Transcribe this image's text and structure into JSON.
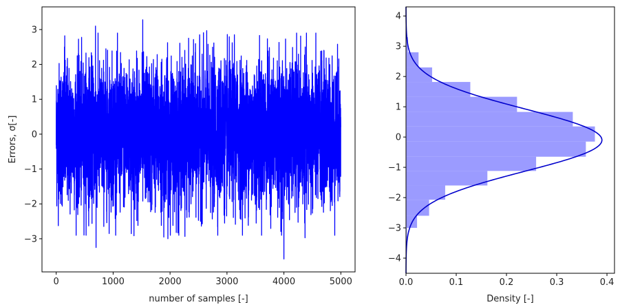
{
  "chart_data": [
    {
      "type": "line",
      "xlabel": "number of samples [-]",
      "ylabel": "Errors, σ[-]",
      "xlim": [
        -250,
        5250
      ],
      "ylim": [
        -3.95,
        3.65
      ],
      "xticks": [
        0,
        1000,
        2000,
        3000,
        4000,
        5000
      ],
      "yticks": [
        -3,
        -2,
        -1,
        0,
        1,
        2,
        3
      ],
      "xtick_labels": [
        "0",
        "1000",
        "2000",
        "3000",
        "4000",
        "5000"
      ],
      "ytick_labels": [
        "−3",
        "−2",
        "−1",
        "0",
        "1",
        "2",
        "3"
      ],
      "series": [
        {
          "color": "#0000ff",
          "n_samples": 5000,
          "mean": 0,
          "std": 1,
          "spikes": [
            [
              1520,
              3.28
            ],
            [
              690,
              3.1
            ],
            [
              4000,
              -3.58
            ],
            [
              700,
              -3.25
            ],
            [
              1890,
              -2.95
            ],
            [
              3130,
              2.85
            ],
            [
              2520,
              2.85
            ],
            [
              150,
              2.82
            ]
          ]
        }
      ],
      "grid": false,
      "legend": false
    },
    {
      "type": "histogram",
      "orientation": "horizontal",
      "xlabel": "Density [-]",
      "ylabel": "",
      "xlim": [
        0,
        0.415
      ],
      "ylim": [
        -4.5,
        4.3
      ],
      "xticks": [
        0,
        0.1,
        0.2,
        0.3,
        0.4
      ],
      "yticks": [
        -4,
        -3,
        -2,
        -1,
        0,
        1,
        2,
        3,
        4
      ],
      "xtick_labels": [
        "0.0",
        "0.1",
        "0.2",
        "0.3",
        "0.4"
      ],
      "ytick_labels": [
        "−4",
        "−3",
        "−2",
        "−1",
        "0",
        "1",
        "2",
        "3",
        "4"
      ],
      "bins": [
        {
          "y0": -3.58,
          "y1": -3.0,
          "density": 0.002
        },
        {
          "y0": -3.0,
          "y1": -2.6,
          "density": 0.022
        },
        {
          "y0": -2.6,
          "y1": -2.07,
          "density": 0.046
        },
        {
          "y0": -2.07,
          "y1": -1.6,
          "density": 0.078
        },
        {
          "y0": -1.6,
          "y1": -1.12,
          "density": 0.162
        },
        {
          "y0": -1.12,
          "y1": -0.65,
          "density": 0.259
        },
        {
          "y0": -0.65,
          "y1": -0.15,
          "density": 0.358
        },
        {
          "y0": -0.15,
          "y1": 0.35,
          "density": 0.376
        },
        {
          "y0": 0.35,
          "y1": 0.83,
          "density": 0.332
        },
        {
          "y0": 0.83,
          "y1": 1.33,
          "density": 0.221
        },
        {
          "y0": 1.33,
          "y1": 1.82,
          "density": 0.128
        },
        {
          "y0": 1.82,
          "y1": 2.3,
          "density": 0.052
        },
        {
          "y0": 2.3,
          "y1": 2.8,
          "density": 0.025
        },
        {
          "y0": 2.8,
          "y1": 3.3,
          "density": 0.004
        }
      ],
      "bar_color": "#9b9bff",
      "kde": {
        "mean": -0.1,
        "std": 1.03,
        "peak": 0.39,
        "color": "#0000cc",
        "y_range": [
          -4.5,
          4.3
        ]
      },
      "grid": false,
      "legend": false
    }
  ]
}
